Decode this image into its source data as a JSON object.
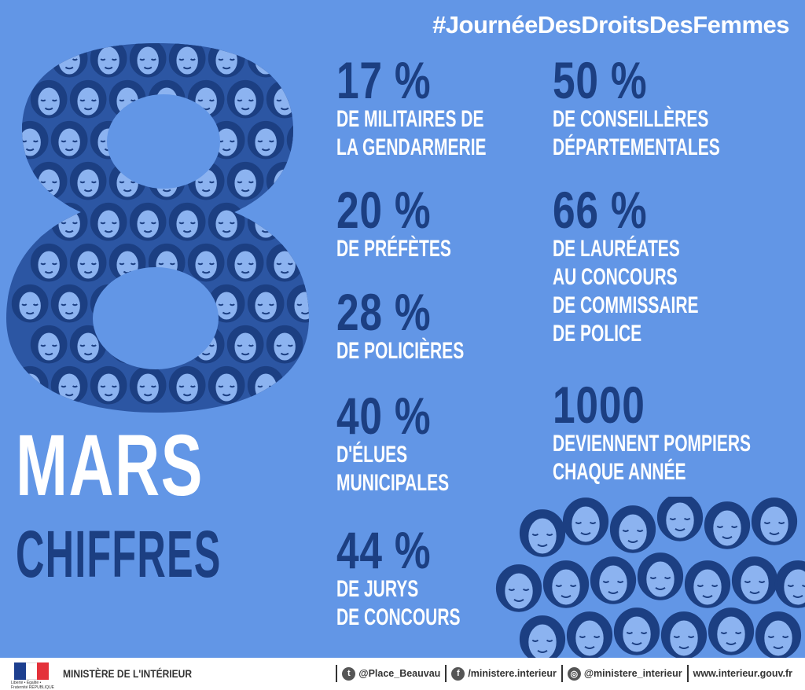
{
  "hashtag": "#JournéeDesDroitsDesFemmes",
  "title": {
    "line1": "MARS",
    "line2": "CHIFFRES"
  },
  "stats_left": [
    {
      "value": "17 %",
      "label_lines": [
        "DE MILITAIRES DE",
        "LA GENDARMERIE"
      ]
    },
    {
      "value": "20 %",
      "label_lines": [
        "DE PRÉFÈTES"
      ]
    },
    {
      "value": "28 %",
      "label_lines": [
        "DE POLICIÈRES"
      ]
    },
    {
      "value": "40 %",
      "label_lines": [
        "D'ÉLUES",
        "MUNICIPALES"
      ]
    },
    {
      "value": "44 %",
      "label_lines": [
        "DE JURYS",
        "DE CONCOURS"
      ]
    }
  ],
  "stats_right": [
    {
      "value": "50 %",
      "label_lines": [
        "DE CONSEILLÈRES",
        "DÉPARTEMENTALES"
      ]
    },
    {
      "value": "66 %",
      "label_lines": [
        "DE LAURÉATES",
        "AU CONCOURS",
        "DE COMMISSAIRE",
        "DE POLICE"
      ]
    },
    {
      "value": "1000",
      "label_lines": [
        "DEVIENNENT POMPIERS",
        "CHAQUE ANNÉE"
      ]
    }
  ],
  "footer": {
    "flag_caption": "Liberté • Égalité • Fraternité RÉPUBLIQUE FRANÇAISE",
    "ministry": "MINISTÈRE DE L'INTÉRIEUR",
    "twitter": "@Place_Beauvau",
    "facebook": "/ministere.interieur",
    "instagram": "@ministere_interieur",
    "website": "www.interieur.gouv.fr"
  },
  "colors": {
    "background": "#6296e6",
    "navy": "#1c3f82",
    "white": "#ffffff"
  }
}
